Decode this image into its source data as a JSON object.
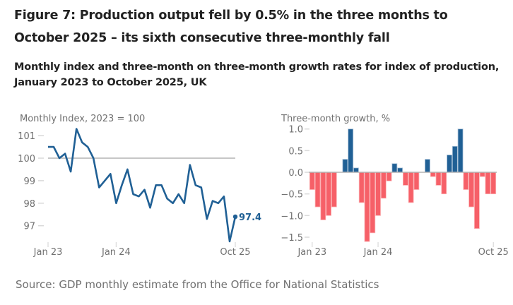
{
  "figure": {
    "title": "Figure 7: Production output fell by 0.5% in the three months to October 2025 – its sixth consecutive three-monthly fall",
    "subtitle": "Monthly index and three-month on three-month growth rates for index of production, January 2023 to October 2025, UK",
    "source": "Source: GDP monthly estimate from the Office for National Statistics"
  },
  "colors": {
    "line": "#206095",
    "bar_positive": "#206095",
    "bar_negative": "#f66068",
    "reference_line": "#b3b3b3",
    "text_muted": "#707070"
  },
  "chart_data": [
    {
      "type": "line",
      "title": "",
      "ylabel": "Monthly Index, 2023 = 100",
      "xlabel": "",
      "ylim": [
        96.2,
        101.5
      ],
      "yticks": [
        97,
        98,
        99,
        100,
        101
      ],
      "reference_line": 100,
      "x_tick_labels": [
        {
          "index": 0,
          "label": "Jan 23"
        },
        {
          "index": 12,
          "label": "Jan 24"
        },
        {
          "index": 33,
          "label": "Oct 25"
        }
      ],
      "x": [
        "Jan 23",
        "Feb 23",
        "Mar 23",
        "Apr 23",
        "May 23",
        "Jun 23",
        "Jul 23",
        "Aug 23",
        "Sep 23",
        "Oct 23",
        "Nov 23",
        "Dec 23",
        "Jan 24",
        "Feb 24",
        "Mar 24",
        "Apr 24",
        "May 24",
        "Jun 24",
        "Jul 24",
        "Aug 24",
        "Sep 24",
        "Oct 24",
        "Nov 24",
        "Dec 24",
        "Jan 25",
        "Feb 25",
        "Mar 25",
        "Apr 25",
        "May 25",
        "Jun 25",
        "Jul 25",
        "Aug 25",
        "Sep 25",
        "Oct 25"
      ],
      "values": [
        100.5,
        100.5,
        100.0,
        100.2,
        99.4,
        101.3,
        100.7,
        100.5,
        100.0,
        98.7,
        99.0,
        99.3,
        98.0,
        98.8,
        99.5,
        98.4,
        98.3,
        98.6,
        97.8,
        98.8,
        98.8,
        98.2,
        98.0,
        98.4,
        98.0,
        99.7,
        98.8,
        98.7,
        97.3,
        98.1,
        98.0,
        98.3,
        96.3,
        97.4
      ],
      "end_label": "97.4",
      "grid": false
    },
    {
      "type": "bar",
      "title": "",
      "ylabel": "Three-month growth, %",
      "xlabel": "",
      "ylim": [
        -1.6,
        1.0
      ],
      "yticks": [
        -1.5,
        -1.0,
        -0.5,
        0.0,
        0.5,
        1.0
      ],
      "ytick_labels": [
        "−1.5",
        "−1.0",
        "−0.5",
        "0.0",
        "0.5",
        "1.0"
      ],
      "x_tick_labels": [
        {
          "index": 0,
          "label": "Jan 23"
        },
        {
          "index": 12,
          "label": "Jan 24"
        },
        {
          "index": 33,
          "label": "Oct 25"
        }
      ],
      "categories": [
        "Jan 23",
        "Feb 23",
        "Mar 23",
        "Apr 23",
        "May 23",
        "Jun 23",
        "Jul 23",
        "Aug 23",
        "Sep 23",
        "Oct 23",
        "Nov 23",
        "Dec 23",
        "Jan 24",
        "Feb 24",
        "Mar 24",
        "Apr 24",
        "May 24",
        "Jun 24",
        "Jul 24",
        "Aug 24",
        "Sep 24",
        "Oct 24",
        "Nov 24",
        "Dec 24",
        "Jan 25",
        "Feb 25",
        "Mar 25",
        "Apr 25",
        "May 25",
        "Jun 25",
        "Jul 25",
        "Aug 25",
        "Sep 25",
        "Oct 25"
      ],
      "values": [
        -0.4,
        -0.8,
        -1.1,
        -1.0,
        -0.8,
        0.0,
        0.3,
        1.0,
        0.1,
        -0.7,
        -1.6,
        -1.4,
        -1.0,
        -0.6,
        -0.2,
        0.2,
        0.1,
        -0.3,
        -0.7,
        -0.4,
        0.0,
        0.3,
        -0.1,
        -0.3,
        -0.5,
        0.4,
        0.6,
        1.0,
        -0.4,
        -0.8,
        -1.3,
        -0.1,
        -0.5,
        -0.5
      ],
      "grid": false
    }
  ]
}
